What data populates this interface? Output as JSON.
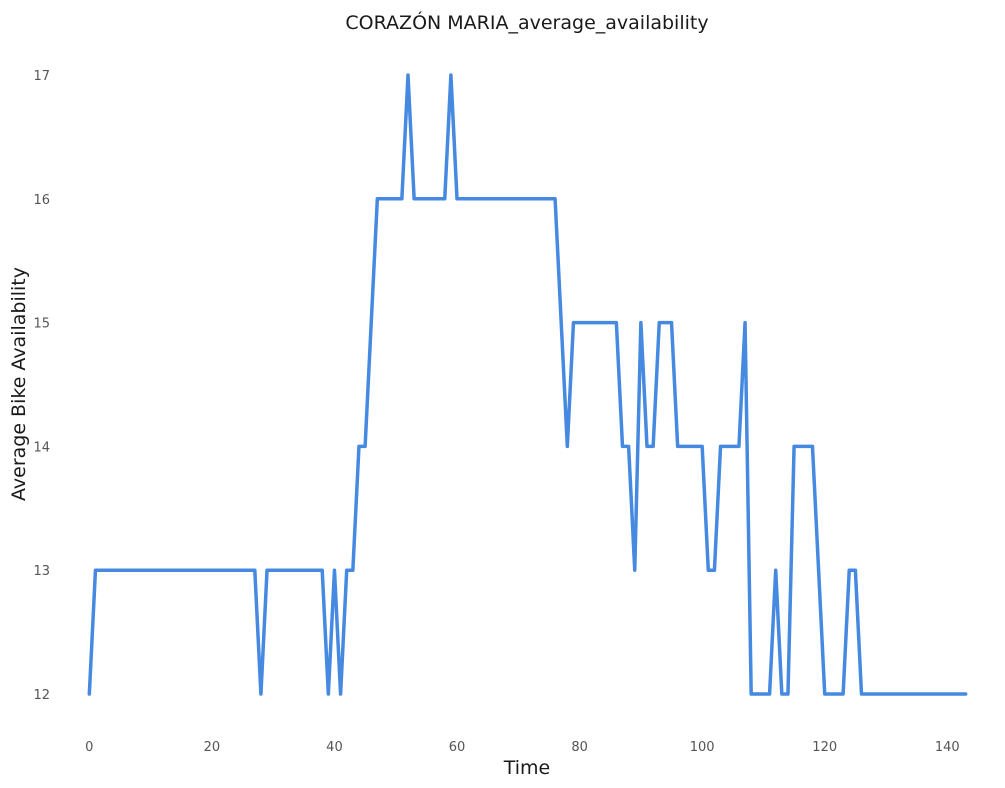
{
  "chart_data": {
    "type": "line",
    "title": "CORAZÓN MARIA_average_availability",
    "xlabel": "Time",
    "ylabel": "Average Bike Availability",
    "xlim": [
      -2.5,
      145.5
    ],
    "ylim": [
      11.75,
      17.25
    ],
    "xticks": [
      0,
      20,
      40,
      60,
      80,
      100,
      120,
      140
    ],
    "yticks": [
      12,
      13,
      14,
      15,
      16,
      17
    ],
    "xtick_labels": [
      "0",
      "20",
      "40",
      "60",
      "80",
      "100",
      "120",
      "140"
    ],
    "ytick_labels": [
      "12",
      "13",
      "14",
      "15",
      "16",
      "17"
    ],
    "grid": false,
    "series_color": "#4589e0",
    "x": [
      0,
      1,
      2,
      3,
      4,
      5,
      6,
      7,
      8,
      9,
      10,
      11,
      12,
      13,
      14,
      15,
      16,
      17,
      18,
      19,
      20,
      21,
      22,
      23,
      24,
      25,
      26,
      27,
      28,
      29,
      30,
      31,
      32,
      33,
      34,
      35,
      36,
      37,
      38,
      39,
      40,
      41,
      42,
      43,
      44,
      45,
      46,
      47,
      48,
      49,
      50,
      51,
      52,
      53,
      54,
      55,
      56,
      57,
      58,
      59,
      60,
      61,
      62,
      63,
      64,
      65,
      66,
      67,
      68,
      69,
      70,
      71,
      72,
      73,
      74,
      75,
      76,
      77,
      78,
      79,
      80,
      81,
      82,
      83,
      84,
      85,
      86,
      87,
      88,
      89,
      90,
      91,
      92,
      93,
      94,
      95,
      96,
      97,
      98,
      99,
      100,
      101,
      102,
      103,
      104,
      105,
      106,
      107,
      108,
      109,
      110,
      111,
      112,
      113,
      114,
      115,
      116,
      117,
      118,
      119,
      120,
      121,
      122,
      123,
      124,
      125,
      126,
      127,
      128,
      129,
      130,
      131,
      132,
      133,
      134,
      135,
      136,
      137,
      138,
      139,
      140,
      141,
      142,
      143
    ],
    "y": [
      12,
      13,
      13,
      13,
      13,
      13,
      13,
      13,
      13,
      13,
      13,
      13,
      13,
      13,
      13,
      13,
      13,
      13,
      13,
      13,
      13,
      13,
      13,
      13,
      13,
      13,
      13,
      13,
      12,
      13,
      13,
      13,
      13,
      13,
      13,
      13,
      13,
      13,
      13,
      12,
      13,
      12,
      13,
      13,
      14,
      14,
      15,
      16,
      16,
      16,
      16,
      16,
      17,
      16,
      16,
      16,
      16,
      16,
      16,
      17,
      16,
      16,
      16,
      16,
      16,
      16,
      16,
      16,
      16,
      16,
      16,
      16,
      16,
      16,
      16,
      16,
      16,
      15,
      14,
      15,
      15,
      15,
      15,
      15,
      15,
      15,
      15,
      14,
      14,
      13,
      15,
      14,
      14,
      15,
      15,
      15,
      14,
      14,
      14,
      14,
      14,
      13,
      13,
      14,
      14,
      14,
      14,
      15,
      12,
      12,
      12,
      12,
      13,
      12,
      12,
      14,
      14,
      14,
      14,
      13,
      12,
      12,
      12,
      12,
      13,
      13,
      12,
      12,
      12,
      12,
      12,
      12,
      12,
      12,
      12,
      12,
      12,
      12,
      12,
      12,
      12,
      12,
      12,
      12
    ]
  }
}
